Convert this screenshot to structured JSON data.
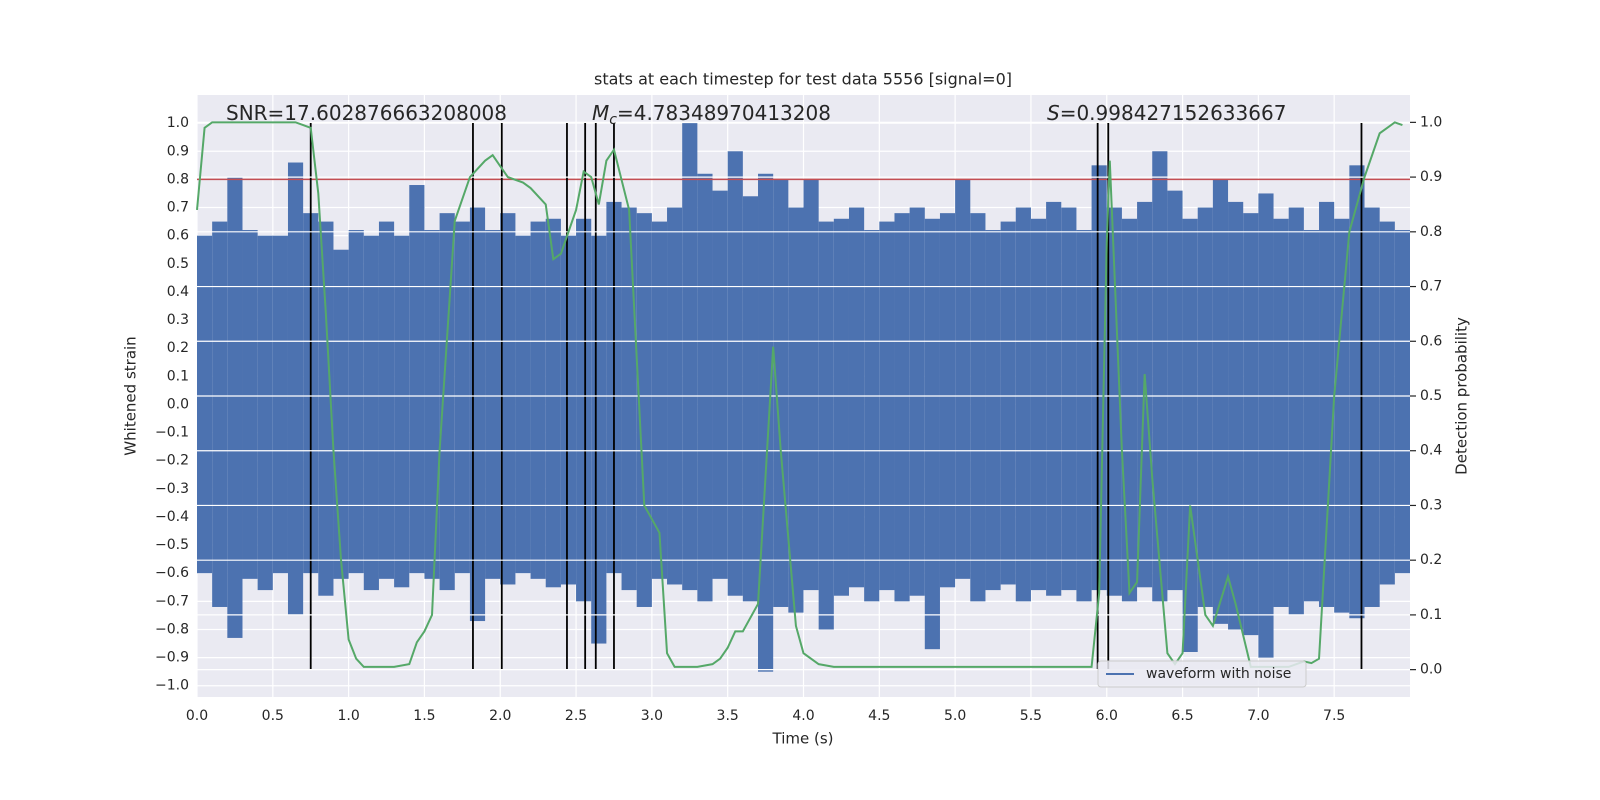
{
  "chart_data": {
    "type": "line",
    "title": "stats at each timestep for test data 5556 [signal=0]",
    "x_label": "Time (s)",
    "y_label": "Whitened strain",
    "y2_label": "Detection probability",
    "annotations": [
      {
        "text": "SNR=17.602876663208008"
      },
      {
        "italic": "M",
        "sub": "c",
        "text": "=4.78348970413208"
      },
      {
        "italic": "S",
        "text": "=0.998427152633667"
      }
    ],
    "xlim": [
      0,
      8.0
    ],
    "ylim": [
      -1.04,
      1.1
    ],
    "y2lim": [
      -0.05,
      1.05
    ],
    "grid": true,
    "legend": "lower right",
    "xticks": [
      {
        "value": 0,
        "label": "0.0"
      },
      {
        "value": 0.5,
        "label": "0.5"
      },
      {
        "value": 1,
        "label": "1.0"
      },
      {
        "value": 1.5,
        "label": "1.5"
      },
      {
        "value": 2,
        "label": "2.0"
      },
      {
        "value": 2.5,
        "label": "2.5"
      },
      {
        "value": 3,
        "label": "3.0"
      },
      {
        "value": 3.5,
        "label": "3.5"
      },
      {
        "value": 4,
        "label": "4.0"
      },
      {
        "value": 4.5,
        "label": "4.5"
      },
      {
        "value": 5,
        "label": "5.0"
      },
      {
        "value": 5.5,
        "label": "5.5"
      },
      {
        "value": 6,
        "label": "6.0"
      },
      {
        "value": 6.5,
        "label": "6.5"
      },
      {
        "value": 7,
        "label": "7.0"
      },
      {
        "value": 7.5,
        "label": "7.5"
      }
    ],
    "yticks": [
      {
        "value": -1,
        "label": "−1.0"
      },
      {
        "value": -0.9,
        "label": "−0.9"
      },
      {
        "value": -0.8,
        "label": "−0.8"
      },
      {
        "value": -0.7,
        "label": "−0.7"
      },
      {
        "value": -0.6,
        "label": "−0.6"
      },
      {
        "value": -0.5,
        "label": "−0.5"
      },
      {
        "value": -0.4,
        "label": "−0.4"
      },
      {
        "value": -0.3,
        "label": "−0.3"
      },
      {
        "value": -0.2,
        "label": "−0.2"
      },
      {
        "value": -0.1,
        "label": "−0.1"
      },
      {
        "value": 0,
        "label": "0.0"
      },
      {
        "value": 0.1,
        "label": "0.1"
      },
      {
        "value": 0.2,
        "label": "0.2"
      },
      {
        "value": 0.3,
        "label": "0.3"
      },
      {
        "value": 0.4,
        "label": "0.4"
      },
      {
        "value": 0.5,
        "label": "0.5"
      },
      {
        "value": 0.6,
        "label": "0.6"
      },
      {
        "value": 0.7,
        "label": "0.7"
      },
      {
        "value": 0.8,
        "label": "0.8"
      },
      {
        "value": 0.9,
        "label": "0.9"
      },
      {
        "value": 1,
        "label": "1.0"
      }
    ],
    "y2ticks": [
      {
        "value": 0,
        "label": "0.0"
      },
      {
        "value": 0.1,
        "label": "0.1"
      },
      {
        "value": 0.2,
        "label": "0.2"
      },
      {
        "value": 0.3,
        "label": "0.3"
      },
      {
        "value": 0.4,
        "label": "0.4"
      },
      {
        "value": 0.5,
        "label": "0.5"
      },
      {
        "value": 0.6,
        "label": "0.6"
      },
      {
        "value": 0.7,
        "label": "0.7"
      },
      {
        "value": 0.8,
        "label": "0.8"
      },
      {
        "value": 0.9,
        "label": "0.9"
      },
      {
        "value": 1,
        "label": "1.0"
      }
    ],
    "bins": [
      0,
      0.1,
      0.2,
      0.3,
      0.4,
      0.5,
      0.6,
      0.7,
      0.8,
      0.9,
      1,
      1.1,
      1.2,
      1.3,
      1.4,
      1.5,
      1.6,
      1.7,
      1.8,
      1.9,
      2,
      2.1,
      2.2,
      2.3,
      2.4,
      2.5,
      2.6,
      2.7,
      2.8,
      2.9,
      3,
      3.1,
      3.2,
      3.3,
      3.4,
      3.5,
      3.6,
      3.7,
      3.8,
      3.9,
      4,
      4.1,
      4.2,
      4.3,
      4.4,
      4.5,
      4.6,
      4.7,
      4.8,
      4.9,
      5,
      5.1,
      5.2,
      5.3,
      5.4,
      5.5,
      5.6,
      5.7,
      5.8,
      5.9,
      6,
      6.1,
      6.2,
      6.3,
      6.4,
      6.5,
      6.6,
      6.7,
      6.8,
      6.9,
      7,
      7.1,
      7.2,
      7.3,
      7.4,
      7.5,
      7.6,
      7.7,
      7.8,
      7.9,
      8.0
    ],
    "series": [
      {
        "name": "waveform with noise",
        "color": "#4c72b0",
        "high": [
          0.6,
          0.65,
          0.81,
          0.62,
          0.6,
          0.6,
          0.86,
          0.68,
          0.65,
          0.55,
          0.62,
          0.6,
          0.65,
          0.6,
          0.78,
          0.62,
          0.68,
          0.65,
          0.7,
          0.62,
          0.68,
          0.6,
          0.65,
          0.66,
          0.6,
          0.66,
          0.6,
          0.72,
          0.7,
          0.68,
          0.65,
          0.7,
          1.0,
          0.82,
          0.76,
          0.9,
          0.74,
          0.82,
          0.8,
          0.7,
          0.8,
          0.65,
          0.66,
          0.7,
          0.62,
          0.65,
          0.68,
          0.7,
          0.66,
          0.68,
          0.8,
          0.68,
          0.62,
          0.65,
          0.7,
          0.66,
          0.72,
          0.7,
          0.62,
          0.85,
          0.7,
          0.66,
          0.72,
          0.9,
          0.76,
          0.66,
          0.7,
          0.8,
          0.72,
          0.68,
          0.75,
          0.66,
          0.7,
          0.62,
          0.72,
          0.66,
          0.85,
          0.7,
          0.65,
          0.62
        ],
        "low": [
          -0.6,
          -0.72,
          -0.83,
          -0.62,
          -0.66,
          -0.6,
          -0.75,
          -0.6,
          -0.68,
          -0.62,
          -0.6,
          -0.66,
          -0.62,
          -0.65,
          -0.6,
          -0.62,
          -0.66,
          -0.6,
          -0.77,
          -0.62,
          -0.64,
          -0.6,
          -0.62,
          -0.65,
          -0.64,
          -0.7,
          -0.85,
          -0.6,
          -0.66,
          -0.72,
          -0.62,
          -0.64,
          -0.66,
          -0.7,
          -0.62,
          -0.68,
          -0.7,
          -0.95,
          -0.72,
          -0.74,
          -0.66,
          -0.8,
          -0.68,
          -0.65,
          -0.7,
          -0.66,
          -0.7,
          -0.68,
          -0.87,
          -0.65,
          -0.62,
          -0.7,
          -0.66,
          -0.64,
          -0.7,
          -0.66,
          -0.68,
          -0.66,
          -0.7,
          -0.66,
          -0.68,
          -0.7,
          -0.65,
          -0.7,
          -0.66,
          -0.88,
          -0.72,
          -0.78,
          -0.8,
          -0.82,
          -0.9,
          -0.72,
          -0.75,
          -0.7,
          -0.72,
          -0.74,
          -0.76,
          -0.72,
          -0.64,
          -0.6
        ]
      },
      {
        "color": "#55a868",
        "axis": "y2",
        "x": [
          0,
          0.05,
          0.1,
          0.2,
          0.3,
          0.4,
          0.5,
          0.6,
          0.65,
          0.7,
          0.75,
          0.8,
          0.85,
          0.9,
          0.95,
          1,
          1.05,
          1.1,
          1.2,
          1.3,
          1.4,
          1.45,
          1.5,
          1.55,
          1.6,
          1.7,
          1.8,
          1.9,
          1.95,
          2,
          2.05,
          2.15,
          2.2,
          2.3,
          2.35,
          2.4,
          2.5,
          2.55,
          2.6,
          2.65,
          2.7,
          2.75,
          2.85,
          2.95,
          3.05,
          3.1,
          3.15,
          3.3,
          3.4,
          3.45,
          3.5,
          3.55,
          3.6,
          3.7,
          3.8,
          3.85,
          3.95,
          4,
          4.1,
          4.2,
          4.5,
          5,
          5.5,
          5.9,
          5.95,
          6,
          6.02,
          6.1,
          6.15,
          6.2,
          6.25,
          6.3,
          6.4,
          6.45,
          6.5,
          6.55,
          6.65,
          6.7,
          6.8,
          6.85,
          6.95,
          7,
          7.2,
          7.3,
          7.35,
          7.4,
          7.5,
          7.6,
          7.7,
          7.8,
          7.9,
          7.95
        ],
        "values": [
          0.84,
          0.99,
          1.0,
          1.0,
          1.0,
          1.0,
          1.0,
          1.0,
          1.0,
          0.995,
          0.99,
          0.87,
          0.65,
          0.4,
          0.2,
          0.055,
          0.02,
          0.005,
          0.005,
          0.005,
          0.01,
          0.05,
          0.07,
          0.1,
          0.4,
          0.82,
          0.9,
          0.93,
          0.94,
          0.92,
          0.9,
          0.89,
          0.88,
          0.85,
          0.75,
          0.76,
          0.84,
          0.91,
          0.9,
          0.85,
          0.93,
          0.95,
          0.84,
          0.3,
          0.25,
          0.03,
          0.005,
          0.005,
          0.01,
          0.02,
          0.04,
          0.07,
          0.07,
          0.12,
          0.59,
          0.4,
          0.08,
          0.03,
          0.01,
          0.005,
          0.005,
          0.005,
          0.005,
          0.005,
          0.14,
          0.78,
          0.93,
          0.4,
          0.14,
          0.16,
          0.54,
          0.35,
          0.03,
          0.01,
          0.03,
          0.3,
          0.1,
          0.08,
          0.17,
          0.12,
          0.005,
          0.005,
          0.005,
          0.015,
          0.012,
          0.02,
          0.5,
          0.8,
          0.9,
          0.98,
          1.0,
          0.995
        ]
      }
    ],
    "hline": {
      "value": 0.8,
      "color": "#c44e52"
    },
    "vlines": {
      "x": [
        0.75,
        1.82,
        2.01,
        2.44,
        2.56,
        2.63,
        2.75,
        5.94,
        6.01,
        7.68
      ],
      "color": "#000000"
    }
  }
}
